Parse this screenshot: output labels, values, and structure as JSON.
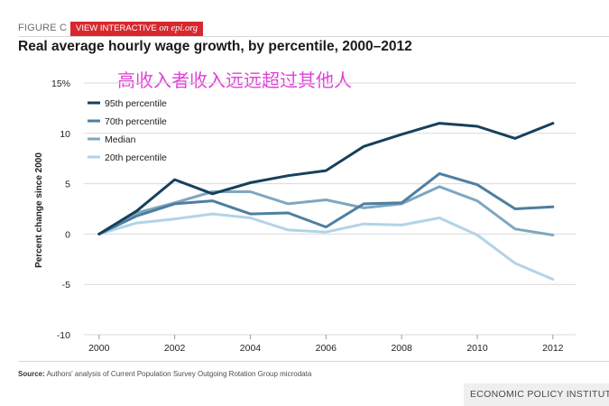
{
  "header": {
    "figure_label": "FIGURE C",
    "interactive_label": "VIEW INTERACTIVE",
    "interactive_site": "on epi.org",
    "title": "Real average hourly wage growth, by percentile, 2000–2012"
  },
  "overlay_text": "高收入者收入远远超过其他人",
  "footer": {
    "source_label": "Source:",
    "source_text": " Authors' analysis of Current Population Survey Outgoing Rotation Group microdata",
    "publisher": "ECONOMIC POLICY INSTITUTE"
  },
  "chart_data": {
    "type": "line",
    "title": "Real average hourly wage growth, by percentile, 2000–2012",
    "xlabel": "",
    "ylabel": "Percent change since 2000",
    "x": [
      2000,
      2001,
      2002,
      2003,
      2004,
      2005,
      2006,
      2007,
      2008,
      2009,
      2010,
      2011,
      2012
    ],
    "xticks": [
      2000,
      2002,
      2004,
      2006,
      2008,
      2010,
      2012
    ],
    "xtick_labels": [
      "2000",
      "2002",
      "2004",
      "2006",
      "2008",
      "2010",
      "2012"
    ],
    "yticks": [
      15,
      10,
      5,
      0,
      -5,
      -10
    ],
    "ytick_labels": [
      "15%",
      "10",
      "5",
      "0",
      "-5",
      "-10"
    ],
    "xlim": [
      1999.6,
      2012.6
    ],
    "ylim": [
      -10,
      15
    ],
    "grid": "horizontal",
    "legend_position": "top-left",
    "series": [
      {
        "name": "95th percentile",
        "color": "#17405c",
        "values": [
          0,
          2.3,
          5.4,
          4.0,
          5.1,
          5.8,
          6.3,
          8.7,
          9.9,
          11.0,
          10.7,
          9.5,
          11.0
        ]
      },
      {
        "name": "70th percentile",
        "color": "#4e7fa0",
        "values": [
          0,
          1.8,
          3.0,
          3.3,
          2.0,
          2.1,
          0.7,
          3.0,
          3.1,
          6.0,
          4.9,
          2.5,
          2.7
        ]
      },
      {
        "name": "Median",
        "color": "#7ea7c0",
        "values": [
          0,
          2.1,
          3.1,
          4.2,
          4.2,
          3.0,
          3.4,
          2.6,
          3.0,
          4.7,
          3.3,
          0.5,
          -0.1
        ]
      },
      {
        "name": "20th percentile",
        "color": "#b3d3e7",
        "values": [
          0,
          1.1,
          1.5,
          2.0,
          1.6,
          0.4,
          0.2,
          1.0,
          0.9,
          1.6,
          -0.1,
          -2.9,
          -4.5
        ]
      }
    ]
  }
}
